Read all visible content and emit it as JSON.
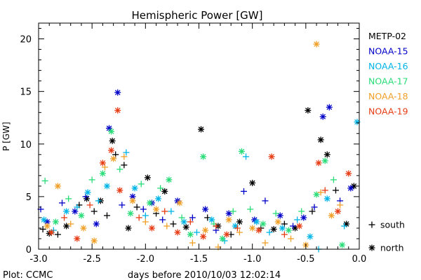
{
  "chart_data": {
    "type": "scatter",
    "title": "Hemispheric Power [GW]",
    "xlabel": "days before 2010/10/03 12:02:14",
    "ylabel": "P [GW]",
    "xlim": [
      -3.0,
      0.0
    ],
    "ylim": [
      0,
      21.5
    ],
    "xticks": [
      "-3.0",
      "-2.5",
      "-2.0",
      "-1.5",
      "-1.0",
      "-0.5",
      "0.0"
    ],
    "yticks": [
      "0",
      "5",
      "10",
      "15",
      "20"
    ],
    "grid": false,
    "legend_position": "right",
    "credit": "Plot: CCMC",
    "marker_legend": [
      {
        "symbol": "+",
        "label": "south"
      },
      {
        "symbol": "*",
        "label": "north"
      }
    ],
    "series": [
      {
        "name": "METP-02",
        "color": "#000000",
        "points": [
          {
            "x": -2.96,
            "y": 1.9,
            "h": "south"
          },
          {
            "x": -2.9,
            "y": 1.5,
            "h": "north"
          },
          {
            "x": -2.82,
            "y": 1.4,
            "h": "south"
          },
          {
            "x": -2.74,
            "y": 2.2,
            "h": "north"
          },
          {
            "x": -2.62,
            "y": 4.2,
            "h": "south"
          },
          {
            "x": -2.55,
            "y": 4.8,
            "h": "north"
          },
          {
            "x": -2.48,
            "y": 3.6,
            "h": "south"
          },
          {
            "x": -2.42,
            "y": 4.6,
            "h": "north"
          },
          {
            "x": -2.36,
            "y": 3.2,
            "h": "south"
          },
          {
            "x": -2.31,
            "y": 10.3,
            "h": "north"
          },
          {
            "x": -2.28,
            "y": 9.0,
            "h": "south"
          },
          {
            "x": -2.2,
            "y": 8.0,
            "h": "south"
          },
          {
            "x": -2.16,
            "y": 2.0,
            "h": "north"
          },
          {
            "x": -2.08,
            "y": 4.0,
            "h": "south"
          },
          {
            "x": -1.98,
            "y": 6.8,
            "h": "north"
          },
          {
            "x": -1.9,
            "y": 3.4,
            "h": "south"
          },
          {
            "x": -1.82,
            "y": 5.5,
            "h": "north"
          },
          {
            "x": -1.74,
            "y": 2.4,
            "h": "south"
          },
          {
            "x": -1.62,
            "y": 2.1,
            "h": "north"
          },
          {
            "x": -1.48,
            "y": 11.4,
            "h": "north"
          },
          {
            "x": -1.42,
            "y": 3.0,
            "h": "south"
          },
          {
            "x": -1.32,
            "y": 2.2,
            "h": "north"
          },
          {
            "x": -1.2,
            "y": 1.4,
            "h": "south"
          },
          {
            "x": -1.12,
            "y": 2.6,
            "h": "north"
          },
          {
            "x": -1.0,
            "y": 6.3,
            "h": "north"
          },
          {
            "x": -0.92,
            "y": 2.0,
            "h": "south"
          },
          {
            "x": -0.8,
            "y": 1.9,
            "h": "north"
          },
          {
            "x": -0.7,
            "y": 2.4,
            "h": "south"
          },
          {
            "x": -0.6,
            "y": 2.0,
            "h": "north"
          },
          {
            "x": -0.48,
            "y": 13.2,
            "h": "north"
          },
          {
            "x": -0.44,
            "y": 3.6,
            "h": "south"
          },
          {
            "x": -0.36,
            "y": 10.4,
            "h": "north"
          },
          {
            "x": -0.3,
            "y": 9.0,
            "h": "north"
          },
          {
            "x": -0.22,
            "y": 5.6,
            "h": "south"
          },
          {
            "x": -0.12,
            "y": 2.4,
            "h": "north"
          },
          {
            "x": -0.05,
            "y": 6.0,
            "h": "north"
          }
        ]
      },
      {
        "name": "NOAA-15",
        "color": "#0000c8",
        "points": [
          {
            "x": -2.98,
            "y": 3.8,
            "h": "south"
          },
          {
            "x": -2.92,
            "y": 2.6,
            "h": "north"
          },
          {
            "x": -2.78,
            "y": 4.4,
            "h": "south"
          },
          {
            "x": -2.66,
            "y": 3.6,
            "h": "north"
          },
          {
            "x": -2.56,
            "y": 5.0,
            "h": "south"
          },
          {
            "x": -2.46,
            "y": 2.4,
            "h": "north"
          },
          {
            "x": -2.34,
            "y": 11.5,
            "h": "north"
          },
          {
            "x": -2.26,
            "y": 14.9,
            "h": "north"
          },
          {
            "x": -2.22,
            "y": 4.2,
            "h": "south"
          },
          {
            "x": -2.12,
            "y": 5.0,
            "h": "north"
          },
          {
            "x": -2.02,
            "y": 3.8,
            "h": "south"
          },
          {
            "x": -1.94,
            "y": 4.4,
            "h": "north"
          },
          {
            "x": -1.84,
            "y": 2.8,
            "h": "south"
          },
          {
            "x": -1.7,
            "y": 4.6,
            "h": "north"
          },
          {
            "x": -1.56,
            "y": 3.0,
            "h": "south"
          },
          {
            "x": -1.44,
            "y": 3.8,
            "h": "north"
          },
          {
            "x": -1.34,
            "y": 1.8,
            "h": "south"
          },
          {
            "x": -1.22,
            "y": 3.4,
            "h": "north"
          },
          {
            "x": -1.08,
            "y": 5.5,
            "h": "south"
          },
          {
            "x": -0.98,
            "y": 2.8,
            "h": "north"
          },
          {
            "x": -0.88,
            "y": 4.6,
            "h": "south"
          },
          {
            "x": -0.74,
            "y": 3.2,
            "h": "north"
          },
          {
            "x": -0.62,
            "y": 2.2,
            "h": "south"
          },
          {
            "x": -0.52,
            "y": 3.0,
            "h": "north"
          },
          {
            "x": -0.42,
            "y": 4.0,
            "h": "south"
          },
          {
            "x": -0.34,
            "y": 12.6,
            "h": "north"
          },
          {
            "x": -0.28,
            "y": 13.5,
            "h": "north"
          },
          {
            "x": -0.18,
            "y": 4.6,
            "h": "south"
          },
          {
            "x": -0.08,
            "y": 5.8,
            "h": "north"
          }
        ]
      },
      {
        "name": "NOAA-16",
        "color": "#00b4e6",
        "points": [
          {
            "x": -2.95,
            "y": 2.8,
            "h": "north"
          },
          {
            "x": -2.86,
            "y": 1.8,
            "h": "south"
          },
          {
            "x": -2.74,
            "y": 3.6,
            "h": "north"
          },
          {
            "x": -2.64,
            "y": 4.0,
            "h": "south"
          },
          {
            "x": -2.54,
            "y": 5.4,
            "h": "north"
          },
          {
            "x": -2.44,
            "y": 4.6,
            "h": "south"
          },
          {
            "x": -2.36,
            "y": 6.0,
            "h": "north"
          },
          {
            "x": -2.18,
            "y": 9.2,
            "h": "south"
          },
          {
            "x": -2.1,
            "y": 5.8,
            "h": "north"
          },
          {
            "x": -2.0,
            "y": 3.2,
            "h": "south"
          },
          {
            "x": -1.88,
            "y": 4.8,
            "h": "north"
          },
          {
            "x": -1.76,
            "y": 3.6,
            "h": "south"
          },
          {
            "x": -1.64,
            "y": 2.6,
            "h": "north"
          },
          {
            "x": -1.52,
            "y": 1.6,
            "h": "south"
          },
          {
            "x": -1.38,
            "y": 2.8,
            "h": "north"
          },
          {
            "x": -1.26,
            "y": 0.8,
            "h": "south"
          },
          {
            "x": -1.16,
            "y": 2.2,
            "h": "north"
          },
          {
            "x": -1.06,
            "y": 8.8,
            "h": "south"
          },
          {
            "x": -0.96,
            "y": 2.6,
            "h": "north"
          },
          {
            "x": -0.84,
            "y": 1.6,
            "h": "south"
          },
          {
            "x": -0.72,
            "y": 2.0,
            "h": "north"
          },
          {
            "x": -0.58,
            "y": 2.8,
            "h": "south"
          },
          {
            "x": -0.46,
            "y": 1.2,
            "h": "north"
          },
          {
            "x": -0.38,
            "y": 0.0,
            "h": "south"
          },
          {
            "x": -0.3,
            "y": 4.8,
            "h": "north"
          },
          {
            "x": -0.14,
            "y": 2.2,
            "h": "south"
          },
          {
            "x": -0.02,
            "y": 12.1,
            "h": "north"
          }
        ]
      },
      {
        "name": "NOAA-17",
        "color": "#28dc78",
        "points": [
          {
            "x": -2.94,
            "y": 6.5,
            "h": "south"
          },
          {
            "x": -2.84,
            "y": 2.6,
            "h": "north"
          },
          {
            "x": -2.72,
            "y": 4.8,
            "h": "south"
          },
          {
            "x": -2.6,
            "y": 3.2,
            "h": "north"
          },
          {
            "x": -2.5,
            "y": 6.6,
            "h": "south"
          },
          {
            "x": -2.4,
            "y": 7.2,
            "h": "north"
          },
          {
            "x": -2.32,
            "y": 11.2,
            "h": "north"
          },
          {
            "x": -2.24,
            "y": 7.6,
            "h": "south"
          },
          {
            "x": -2.14,
            "y": 3.4,
            "h": "north"
          },
          {
            "x": -2.04,
            "y": 6.2,
            "h": "south"
          },
          {
            "x": -1.96,
            "y": 4.4,
            "h": "north"
          },
          {
            "x": -1.86,
            "y": 5.8,
            "h": "south"
          },
          {
            "x": -1.78,
            "y": 6.6,
            "h": "north"
          },
          {
            "x": -1.66,
            "y": 3.0,
            "h": "south"
          },
          {
            "x": -1.58,
            "y": 1.4,
            "h": "north"
          },
          {
            "x": -1.46,
            "y": 8.8,
            "h": "north"
          },
          {
            "x": -1.36,
            "y": 2.4,
            "h": "south"
          },
          {
            "x": -1.28,
            "y": 1.0,
            "h": "north"
          },
          {
            "x": -1.18,
            "y": 3.6,
            "h": "south"
          },
          {
            "x": -1.1,
            "y": 9.3,
            "h": "north"
          },
          {
            "x": -1.02,
            "y": 3.8,
            "h": "south"
          },
          {
            "x": -0.9,
            "y": 2.4,
            "h": "north"
          },
          {
            "x": -0.78,
            "y": 3.4,
            "h": "south"
          },
          {
            "x": -0.66,
            "y": 1.8,
            "h": "north"
          },
          {
            "x": -0.54,
            "y": 3.6,
            "h": "south"
          },
          {
            "x": -0.4,
            "y": 5.2,
            "h": "north"
          },
          {
            "x": -0.32,
            "y": 8.4,
            "h": "north"
          },
          {
            "x": -0.24,
            "y": 6.6,
            "h": "south"
          },
          {
            "x": -0.16,
            "y": 0.4,
            "h": "north"
          }
        ]
      },
      {
        "name": "NOAA-18",
        "color": "#f0a028",
        "points": [
          {
            "x": -2.92,
            "y": 2.2,
            "h": "north"
          },
          {
            "x": -2.82,
            "y": 6.0,
            "h": "north"
          },
          {
            "x": -2.7,
            "y": 2.4,
            "h": "south"
          },
          {
            "x": -2.58,
            "y": 2.0,
            "h": "north"
          },
          {
            "x": -2.48,
            "y": 0.8,
            "h": "north"
          },
          {
            "x": -2.38,
            "y": 7.8,
            "h": "south"
          },
          {
            "x": -2.3,
            "y": 8.6,
            "h": "north"
          },
          {
            "x": -2.2,
            "y": 8.8,
            "h": "south"
          },
          {
            "x": -2.12,
            "y": 4.6,
            "h": "north"
          },
          {
            "x": -2.0,
            "y": 2.6,
            "h": "south"
          },
          {
            "x": -1.9,
            "y": 3.8,
            "h": "north"
          },
          {
            "x": -1.8,
            "y": 2.2,
            "h": "south"
          },
          {
            "x": -1.68,
            "y": 4.4,
            "h": "north"
          },
          {
            "x": -1.56,
            "y": 0.6,
            "h": "south"
          },
          {
            "x": -1.44,
            "y": 1.8,
            "h": "north"
          },
          {
            "x": -1.32,
            "y": 0.2,
            "h": "south"
          },
          {
            "x": -1.22,
            "y": 2.8,
            "h": "north"
          },
          {
            "x": -1.12,
            "y": 1.6,
            "h": "south"
          },
          {
            "x": -1.0,
            "y": 2.0,
            "h": "north"
          },
          {
            "x": -0.88,
            "y": 0.6,
            "h": "south"
          },
          {
            "x": -0.76,
            "y": 2.6,
            "h": "north"
          },
          {
            "x": -0.64,
            "y": 1.0,
            "h": "south"
          },
          {
            "x": -0.5,
            "y": 0.4,
            "h": "north"
          },
          {
            "x": -0.4,
            "y": 19.5,
            "h": "north"
          },
          {
            "x": -0.36,
            "y": 5.4,
            "h": "south"
          },
          {
            "x": -0.26,
            "y": 3.2,
            "h": "north"
          },
          {
            "x": -0.18,
            "y": 4.2,
            "h": "south"
          }
        ]
      },
      {
        "name": "NOAA-19",
        "color": "#e63c14",
        "points": [
          {
            "x": -2.88,
            "y": 1.6,
            "h": "north"
          },
          {
            "x": -2.76,
            "y": 3.0,
            "h": "south"
          },
          {
            "x": -2.64,
            "y": 1.0,
            "h": "north"
          },
          {
            "x": -2.52,
            "y": 4.2,
            "h": "south"
          },
          {
            "x": -2.4,
            "y": 8.2,
            "h": "north"
          },
          {
            "x": -2.32,
            "y": 9.4,
            "h": "north"
          },
          {
            "x": -2.26,
            "y": 13.2,
            "h": "north"
          },
          {
            "x": -2.24,
            "y": 5.6,
            "h": "north"
          },
          {
            "x": -2.06,
            "y": 3.0,
            "h": "south"
          },
          {
            "x": -1.94,
            "y": 2.0,
            "h": "north"
          },
          {
            "x": -1.82,
            "y": 3.6,
            "h": "south"
          },
          {
            "x": -1.7,
            "y": 1.6,
            "h": "north"
          },
          {
            "x": -1.58,
            "y": 2.6,
            "h": "south"
          },
          {
            "x": -1.46,
            "y": 1.2,
            "h": "north"
          },
          {
            "x": -1.34,
            "y": 2.2,
            "h": "south"
          },
          {
            "x": -1.24,
            "y": 1.4,
            "h": "north"
          },
          {
            "x": -1.14,
            "y": 2.0,
            "h": "south"
          },
          {
            "x": -0.94,
            "y": 1.8,
            "h": "north"
          },
          {
            "x": -0.82,
            "y": 8.8,
            "h": "north"
          },
          {
            "x": -0.7,
            "y": 1.4,
            "h": "south"
          },
          {
            "x": -0.56,
            "y": 2.2,
            "h": "north"
          },
          {
            "x": -0.38,
            "y": 8.2,
            "h": "north"
          },
          {
            "x": -0.32,
            "y": 5.6,
            "h": "south"
          },
          {
            "x": -0.2,
            "y": 3.6,
            "h": "north"
          },
          {
            "x": -0.1,
            "y": 7.2,
            "h": "north"
          }
        ]
      }
    ]
  }
}
